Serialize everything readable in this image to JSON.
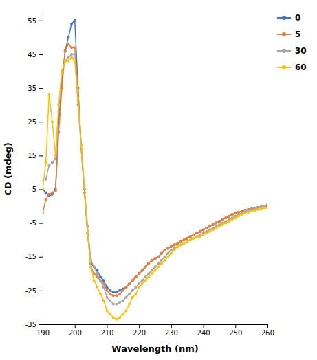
{
  "chart_data": {
    "type": "line",
    "xlabel": "Wavelength (nm)",
    "ylabel": "CD (mdeg)",
    "xlim": [
      190,
      260
    ],
    "ylim": [
      -35,
      57
    ],
    "xticks": [
      190,
      200,
      210,
      220,
      230,
      240,
      250,
      260
    ],
    "yticks": [
      -35,
      -25,
      -15,
      -5,
      5,
      15,
      25,
      35,
      45,
      55
    ],
    "grid": false,
    "legend": "right",
    "marker": "circle",
    "x": [
      190,
      191,
      192,
      193,
      194,
      195,
      196,
      197,
      198,
      199,
      200,
      201,
      202,
      203,
      204,
      205,
      206,
      207,
      208,
      209,
      210,
      211,
      212,
      213,
      214,
      215,
      216,
      217,
      218,
      219,
      220,
      221,
      222,
      223,
      224,
      225,
      226,
      227,
      228,
      229,
      230,
      231,
      232,
      233,
      234,
      235,
      236,
      237,
      238,
      239,
      240,
      241,
      242,
      243,
      244,
      245,
      246,
      247,
      248,
      249,
      250,
      251,
      252,
      253,
      254,
      255,
      256,
      257,
      258,
      259,
      260
    ],
    "series": [
      {
        "name": "0",
        "color": "#4472C4",
        "values": [
          5.0,
          4.0,
          3.0,
          3.5,
          5.0,
          25.0,
          37.0,
          46.0,
          50.0,
          54.0,
          55.0,
          35.0,
          18.0,
          5.0,
          -8.0,
          -17.0,
          -18.0,
          -19.0,
          -21.0,
          -22.0,
          -24.0,
          -25.0,
          -25.5,
          -25.5,
          -25.0,
          -24.5,
          -24.0,
          -23.0,
          -22.0,
          -21.0,
          -20.0,
          -19.0,
          -18.0,
          -17.0,
          -16.0,
          -15.5,
          -15.0,
          -14.0,
          -13.0,
          -12.5,
          -12.0,
          -11.5,
          -11.0,
          -10.5,
          -10.0,
          -9.5,
          -9.0,
          -8.5,
          -8.0,
          -7.5,
          -7.0,
          -6.5,
          -6.0,
          -5.5,
          -5.0,
          -4.5,
          -4.0,
          -3.5,
          -3.0,
          -2.5,
          -2.0,
          -1.8,
          -1.5,
          -1.2,
          -1.0,
          -0.8,
          -0.6,
          -0.4,
          -0.2,
          0.0,
          0.0
        ]
      },
      {
        "name": "5",
        "color": "#ED7D31",
        "values": [
          -2.0,
          2.0,
          3.5,
          4.0,
          4.5,
          22.0,
          35.0,
          46.0,
          48.0,
          47.0,
          47.0,
          35.0,
          17.0,
          4.0,
          -8.0,
          -18.0,
          -20.0,
          -21.0,
          -22.0,
          -23.0,
          -25.0,
          -26.0,
          -26.5,
          -26.5,
          -26.0,
          -25.0,
          -24.0,
          -23.0,
          -22.0,
          -21.0,
          -20.0,
          -19.0,
          -18.0,
          -17.0,
          -16.0,
          -15.5,
          -15.0,
          -14.0,
          -13.0,
          -12.5,
          -12.0,
          -11.5,
          -11.0,
          -10.5,
          -10.0,
          -9.5,
          -9.0,
          -8.5,
          -8.0,
          -7.5,
          -7.0,
          -6.5,
          -6.0,
          -5.5,
          -5.0,
          -4.5,
          -4.0,
          -3.5,
          -3.0,
          -2.5,
          -2.0,
          -1.8,
          -1.5,
          -1.2,
          -1.0,
          -0.8,
          -0.6,
          -0.4,
          -0.2,
          0.0,
          0.0
        ]
      },
      {
        "name": "30",
        "color": "#A5A5A5",
        "values": [
          8.0,
          8.0,
          12.0,
          13.0,
          14.0,
          28.0,
          40.0,
          43.0,
          44.0,
          45.0,
          45.0,
          30.0,
          17.0,
          5.0,
          -6.0,
          -16.0,
          -18.0,
          -20.0,
          -22.0,
          -24.0,
          -27.0,
          -28.0,
          -29.0,
          -29.0,
          -28.5,
          -28.0,
          -27.0,
          -26.0,
          -25.0,
          -24.0,
          -23.0,
          -22.0,
          -21.0,
          -20.0,
          -19.0,
          -18.0,
          -17.0,
          -16.0,
          -15.0,
          -14.0,
          -13.0,
          -12.5,
          -12.0,
          -11.5,
          -11.0,
          -10.5,
          -10.0,
          -9.5,
          -9.0,
          -8.5,
          -8.0,
          -7.5,
          -7.0,
          -6.5,
          -6.0,
          -5.5,
          -5.0,
          -4.5,
          -4.0,
          -3.5,
          -3.0,
          -2.5,
          -2.0,
          -1.5,
          -1.2,
          -1.0,
          -0.8,
          -0.6,
          -0.3,
          0.0,
          0.5
        ]
      },
      {
        "name": "60",
        "color": "#FFC000",
        "values": [
          5.0,
          13.0,
          33.0,
          25.0,
          15.0,
          30.0,
          40.0,
          43.0,
          43.0,
          44.0,
          43.0,
          32.0,
          18.0,
          6.0,
          -8.0,
          -18.0,
          -22.0,
          -24.0,
          -26.0,
          -28.0,
          -31.0,
          -32.0,
          -33.0,
          -33.5,
          -33.0,
          -32.0,
          -31.0,
          -29.0,
          -27.0,
          -26.0,
          -24.0,
          -23.0,
          -22.0,
          -21.0,
          -20.0,
          -19.0,
          -18.0,
          -17.0,
          -16.0,
          -15.0,
          -14.0,
          -13.0,
          -12.0,
          -11.5,
          -11.0,
          -10.5,
          -10.0,
          -9.5,
          -9.2,
          -9.0,
          -8.5,
          -8.0,
          -7.5,
          -7.0,
          -6.5,
          -6.0,
          -5.5,
          -5.0,
          -4.5,
          -4.0,
          -3.5,
          -3.0,
          -2.5,
          -2.0,
          -1.8,
          -1.5,
          -1.2,
          -1.0,
          -0.8,
          -0.5,
          -0.5
        ]
      }
    ]
  }
}
